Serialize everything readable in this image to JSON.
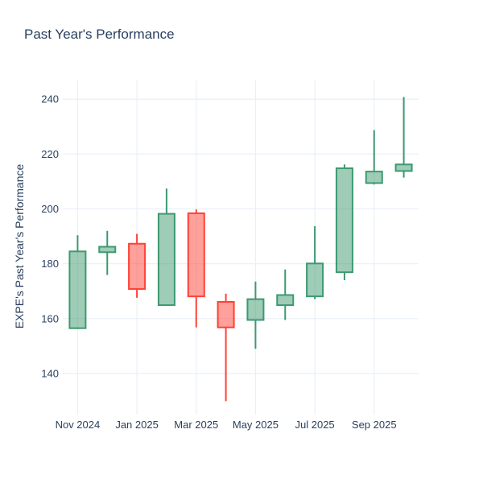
{
  "chart_data": {
    "type": "candlestick",
    "title": "Past Year's Performance",
    "ylabel": "EXPE's Past Year's Performance",
    "xlabel": "",
    "ticker": "EXPE",
    "x": [
      "Nov 2024",
      "Dec 2024",
      "Jan 2025",
      "Feb 2025",
      "Mar 2025",
      "Apr 2025",
      "May 2025",
      "Jun 2025",
      "Jul 2025",
      "Aug 2025",
      "Sep 2025",
      "Oct 2025"
    ],
    "candles": [
      {
        "month": "Nov 2024",
        "open": 156.5,
        "high": 190.4,
        "low": 156.4,
        "close": 184.5
      },
      {
        "month": "Dec 2024",
        "open": 184.2,
        "high": 192.0,
        "low": 175.9,
        "close": 186.2
      },
      {
        "month": "Jan 2025",
        "open": 187.3,
        "high": 190.9,
        "low": 167.6,
        "close": 170.8
      },
      {
        "month": "Feb 2025",
        "open": 164.9,
        "high": 207.4,
        "low": 164.8,
        "close": 198.2
      },
      {
        "month": "Mar 2025",
        "open": 198.4,
        "high": 199.8,
        "low": 156.8,
        "close": 168.1
      },
      {
        "month": "Apr 2025",
        "open": 166.1,
        "high": 169.1,
        "low": 129.9,
        "close": 156.8
      },
      {
        "month": "May 2025",
        "open": 159.5,
        "high": 173.5,
        "low": 149.0,
        "close": 167.1
      },
      {
        "month": "Jun 2025",
        "open": 164.9,
        "high": 177.9,
        "low": 159.5,
        "close": 168.6
      },
      {
        "month": "Jul 2025",
        "open": 168.1,
        "high": 193.7,
        "low": 167.1,
        "close": 180.1
      },
      {
        "month": "Aug 2025",
        "open": 176.9,
        "high": 216.2,
        "low": 174.0,
        "close": 214.8
      },
      {
        "month": "Sep 2025",
        "open": 209.4,
        "high": 228.7,
        "low": 208.9,
        "close": 213.6
      },
      {
        "month": "Oct 2025",
        "open": 213.8,
        "high": 240.8,
        "low": 211.4,
        "close": 216.2
      }
    ],
    "y_ticks": [
      140,
      160,
      180,
      200,
      220,
      240
    ],
    "x_tick_labels": [
      "Nov 2024",
      "Jan 2025",
      "Mar 2025",
      "May 2025",
      "Jul 2025",
      "Sep 2025"
    ],
    "x_tick_positions": [
      0,
      2,
      4,
      6,
      8,
      10
    ],
    "y_range": [
      125.6,
      246.8
    ],
    "grid": true,
    "legend": "none",
    "colors": {
      "increasing": "#3D9970",
      "decreasing": "#FF4136",
      "grid": "#EBF0F8",
      "text": "#2a3f5f",
      "background": "#ffffff"
    },
    "fill_opacity": 0.5
  }
}
